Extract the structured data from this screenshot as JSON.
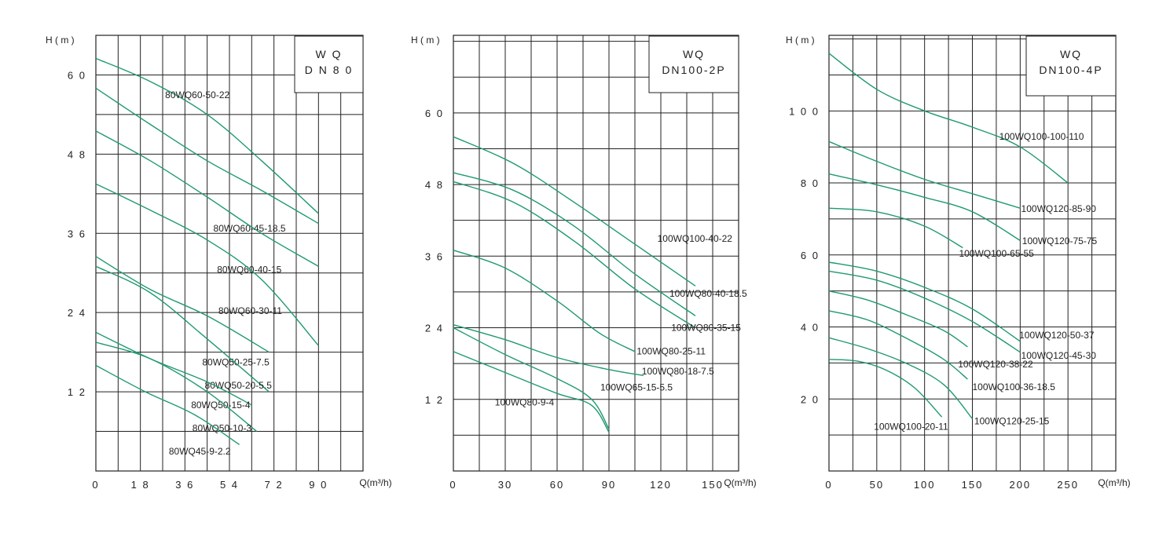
{
  "chart_data": [
    {
      "type": "line",
      "box_lines": [
        "W Q",
        "D N 8 0"
      ],
      "ylabel": "H ( m )",
      "xlabel": "Q(m³/h)",
      "xlim": [
        0,
        108
      ],
      "ylim": [
        0,
        66
      ],
      "x_ticks": [
        "0",
        "1 8",
        "3 6",
        "5 4",
        "7 2",
        "9 0"
      ],
      "x_tick_values": [
        0,
        18,
        36,
        54,
        72,
        90
      ],
      "y_ticks": [
        "1 2",
        "2 4",
        "3 6",
        "4 8",
        "6 0"
      ],
      "y_tick_values": [
        12,
        24,
        36,
        48,
        60
      ],
      "x_grid_step": 9,
      "y_grid_step": 6,
      "series": [
        {
          "name": "80WQ60-50-22",
          "points": [
            [
              0,
              62.5
            ],
            [
              22,
              59
            ],
            [
              45,
              54
            ],
            [
              67,
              47
            ],
            [
              90,
              39
            ]
          ],
          "label_at": [
            28,
            56.5
          ]
        },
        {
          "name": "80WQ60-45-18.5",
          "points": [
            [
              0,
              58
            ],
            [
              22,
              52.5
            ],
            [
              45,
              47
            ],
            [
              67,
              42.5
            ],
            [
              90,
              37.5
            ]
          ],
          "label_at": [
            47.5,
            36.3
          ]
        },
        {
          "name": "80WQ60-40-15",
          "points": [
            [
              0,
              51.5
            ],
            [
              22,
              47
            ],
            [
              45,
              41.5
            ],
            [
              67,
              36
            ],
            [
              90,
              31
            ]
          ],
          "label_at": [
            49,
            30
          ]
        },
        {
          "name": "80WQ60-30-11",
          "points": [
            [
              0,
              43.5
            ],
            [
              22,
              39.5
            ],
            [
              45,
              35
            ],
            [
              67,
              29
            ],
            [
              90,
              19
            ]
          ],
          "label_at": [
            49.5,
            23.8
          ]
        },
        {
          "name": "80WQ50-25-7.5",
          "points": [
            [
              0,
              32.5
            ],
            [
              22,
              27.5
            ],
            [
              45,
              23.5
            ],
            [
              70,
              18
            ]
          ],
          "label_at": [
            43,
            16
          ]
        },
        {
          "name": "80WQ50-20-5.5",
          "points": [
            [
              0,
              31
            ],
            [
              22,
              27
            ],
            [
              45,
              20
            ],
            [
              70,
              12
            ]
          ],
          "label_at": [
            44,
            12.5
          ]
        },
        {
          "name": "80WQ50-15-4",
          "points": [
            [
              0,
              21
            ],
            [
              22,
              17
            ],
            [
              45,
              13.5
            ],
            [
              63,
              10
            ]
          ],
          "label_at": [
            38.5,
            9.5
          ]
        },
        {
          "name": "80WQ50-10-3",
          "points": [
            [
              0,
              19.5
            ],
            [
              22,
              17
            ],
            [
              45,
              12
            ],
            [
              65,
              6
            ]
          ],
          "label_at": [
            39,
            6
          ]
        },
        {
          "name": "80WQ45-9-2.2",
          "points": [
            [
              0,
              16
            ],
            [
              20,
              12
            ],
            [
              40,
              8.5
            ],
            [
              58,
              4
            ]
          ],
          "label_at": [
            29.5,
            2.5
          ]
        }
      ]
    },
    {
      "type": "line",
      "box_lines": [
        "WQ",
        "DN100-2P"
      ],
      "ylabel": "H ( m )",
      "xlabel": "Q(m³/h)",
      "xlim": [
        0,
        165
      ],
      "ylim": [
        0,
        73
      ],
      "x_ticks": [
        "0",
        "30",
        "60",
        "90",
        "120",
        "150"
      ],
      "x_tick_values": [
        0,
        30,
        60,
        90,
        120,
        150
      ],
      "y_ticks": [
        "1 2",
        "2 4",
        "3 6",
        "4 8",
        "6 0"
      ],
      "y_tick_values": [
        12,
        24,
        36,
        48,
        60
      ],
      "x_grid_step": 15,
      "y_grid_step": 6,
      "series": [
        {
          "name": "100WQ100-40-22",
          "points": [
            [
              0,
              56
            ],
            [
              35,
              51.5
            ],
            [
              70,
              45
            ],
            [
              105,
              38
            ],
            [
              140,
              31
            ]
          ],
          "label_at": [
            118,
            38.4
          ]
        },
        {
          "name": "100WQ80-40-18.5",
          "points": [
            [
              0,
              50
            ],
            [
              35,
              47
            ],
            [
              70,
              41
            ],
            [
              105,
              33
            ],
            [
              140,
              26
            ]
          ],
          "label_at": [
            125,
            29.2
          ]
        },
        {
          "name": "100WQ80-35-15",
          "points": [
            [
              0,
              48.5
            ],
            [
              35,
              45
            ],
            [
              70,
              38.5
            ],
            [
              105,
              30.5
            ],
            [
              140,
              24
            ]
          ],
          "label_at": [
            126,
            23.5
          ]
        },
        {
          "name": "100WQ80-25-11",
          "points": [
            [
              0,
              37
            ],
            [
              30,
              34
            ],
            [
              60,
              28.5
            ],
            [
              85,
              23
            ],
            [
              105,
              20
            ]
          ],
          "label_at": [
            106,
            19.5
          ]
        },
        {
          "name": "100WQ80-18-7.5",
          "points": [
            [
              0,
              24.5
            ],
            [
              30,
              22
            ],
            [
              60,
              19
            ],
            [
              90,
              17
            ],
            [
              110,
              16
            ]
          ],
          "label_at": [
            109,
            16.2
          ]
        },
        {
          "name": "100WQ65-15-5.5",
          "points": [
            [
              0,
              24
            ],
            [
              30,
              19.5
            ],
            [
              60,
              15.5
            ],
            [
              80,
              12
            ],
            [
              90,
              7
            ]
          ],
          "label_at": [
            85,
            13.5
          ]
        },
        {
          "name": "100WQ80-9-4",
          "points": [
            [
              0,
              20
            ],
            [
              30,
              16.5
            ],
            [
              60,
              13
            ],
            [
              80,
              11
            ],
            [
              90,
              6.5
            ]
          ],
          "label_at": [
            24,
            11
          ]
        }
      ]
    },
    {
      "type": "line",
      "box_lines": [
        "WQ",
        "DN100-4P"
      ],
      "ylabel": "H ( m )",
      "xlabel": "Q(m³/h)",
      "xlim": [
        0,
        300
      ],
      "ylim": [
        0,
        121
      ],
      "x_ticks": [
        "0",
        "50",
        "100",
        "150",
        "200",
        "250"
      ],
      "x_tick_values": [
        0,
        50,
        100,
        150,
        200,
        250
      ],
      "y_ticks": [
        "2 0",
        "4 0",
        "6 0",
        "8 0",
        "1 0 0"
      ],
      "y_tick_values": [
        20,
        40,
        60,
        80,
        100
      ],
      "x_grid_step": 25,
      "y_grid_step": 10,
      "series": [
        {
          "name": "100WQ100-100-110",
          "points": [
            [
              0,
              116
            ],
            [
              50,
              106
            ],
            [
              100,
              100
            ],
            [
              150,
              95.5
            ],
            [
              200,
              90
            ],
            [
              250,
              80
            ]
          ],
          "label_at": [
            178,
            92
          ]
        },
        {
          "name": "100WQ120-85-90",
          "points": [
            [
              0,
              91.5
            ],
            [
              50,
              86
            ],
            [
              100,
              81
            ],
            [
              150,
              77
            ],
            [
              200,
              73
            ]
          ],
          "label_at": [
            201,
            72
          ]
        },
        {
          "name": "100WQ120-75-75",
          "points": [
            [
              0,
              82.5
            ],
            [
              50,
              79.5
            ],
            [
              100,
              76
            ],
            [
              150,
              72
            ],
            [
              200,
              64
            ]
          ],
          "label_at": [
            202,
            63
          ]
        },
        {
          "name": "100WQ100-65-55",
          "points": [
            [
              0,
              73
            ],
            [
              50,
              72
            ],
            [
              100,
              68
            ],
            [
              140,
              62
            ]
          ],
          "label_at": [
            136,
            59.5
          ]
        },
        {
          "name": "100WQ120-50-37",
          "points": [
            [
              0,
              58
            ],
            [
              50,
              55.5
            ],
            [
              100,
              51
            ],
            [
              150,
              45
            ],
            [
              200,
              36
            ]
          ],
          "label_at": [
            199,
            36.8
          ]
        },
        {
          "name": "100WQ120-45-30",
          "points": [
            [
              0,
              55.5
            ],
            [
              50,
              53
            ],
            [
              100,
              48
            ],
            [
              150,
              41.5
            ],
            [
              200,
              33
            ]
          ],
          "label_at": [
            201,
            31.2
          ]
        },
        {
          "name": "100WQ120-38-22",
          "points": [
            [
              0,
              50
            ],
            [
              40,
              47.5
            ],
            [
              80,
              43.5
            ],
            [
              120,
              39
            ],
            [
              145,
              34.5
            ]
          ],
          "label_at": [
            135,
            28.8
          ]
        },
        {
          "name": "100WQ100-36-18.5",
          "points": [
            [
              0,
              44.5
            ],
            [
              40,
              42
            ],
            [
              80,
              37
            ],
            [
              120,
              31
            ],
            [
              145,
              25.5
            ]
          ],
          "label_at": [
            150,
            22.5
          ]
        },
        {
          "name": "100WQ120-25-15",
          "points": [
            [
              0,
              37
            ],
            [
              40,
              34
            ],
            [
              80,
              30
            ],
            [
              120,
              24
            ],
            [
              150,
              14.5
            ]
          ],
          "label_at": [
            152,
            13
          ]
        },
        {
          "name": "100WQ100-20-11",
          "points": [
            [
              0,
              31
            ],
            [
              30,
              30.5
            ],
            [
              60,
              28
            ],
            [
              90,
              23
            ],
            [
              118,
              15
            ]
          ],
          "label_at": [
            47,
            11.5
          ]
        }
      ]
    }
  ]
}
